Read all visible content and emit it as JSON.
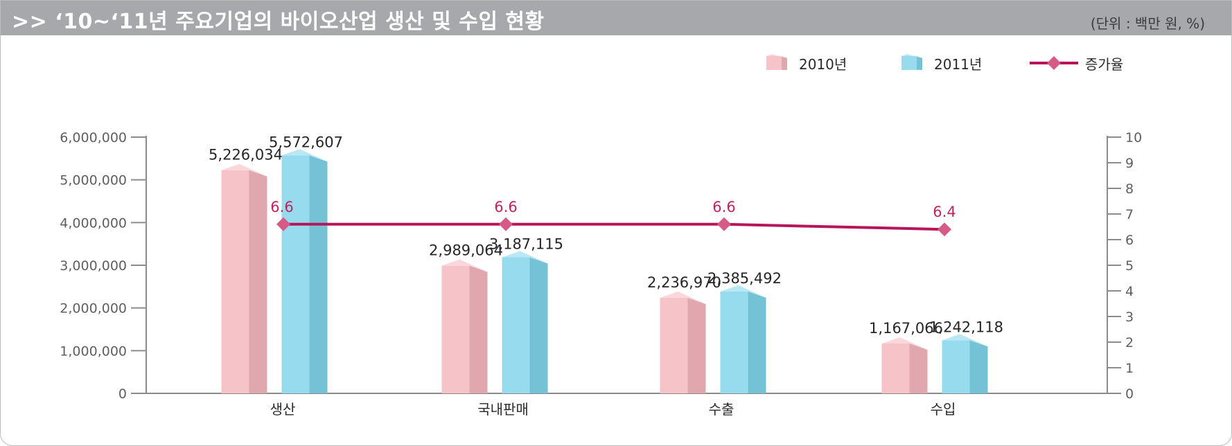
{
  "header": {
    "title": ">> ‘10~‘11년 주요기업의 바이오산업 생산 및 수입 현황",
    "unit": "(단위 : 백만 원, %)"
  },
  "chart_data": {
    "type": "bar",
    "categories": [
      "생산",
      "국내판매",
      "수출",
      "수입"
    ],
    "series": [
      {
        "name": "2010년",
        "values": [
          5226034,
          2989064,
          2236970,
          1167066
        ],
        "labels": [
          "5,226,034",
          "2,989,064",
          "2,236,970",
          "1,167,066"
        ],
        "color": "#f4b6bd"
      },
      {
        "name": "2011년",
        "values": [
          5572607,
          3187115,
          2385492,
          1242118
        ],
        "labels": [
          "5,572,607",
          "3,187,115",
          "2,385,492",
          "1,242,118"
        ],
        "color": "#7fd3ea"
      },
      {
        "name": "증가율",
        "type": "line",
        "axis": "right",
        "values": [
          6.6,
          6.6,
          6.6,
          6.4
        ],
        "labels": [
          "6.6",
          "6.6",
          "6.6",
          "6.4"
        ],
        "color": "#b7155a"
      }
    ],
    "left_axis": {
      "range": [
        0,
        6000000
      ],
      "ticks": [
        "0",
        "1,000,000",
        "2,000,000",
        "3,000,000",
        "4,000,000",
        "5,000,000",
        "6,000,000"
      ]
    },
    "right_axis": {
      "range": [
        0,
        10
      ],
      "ticks": [
        "0",
        "1",
        "2",
        "3",
        "4",
        "5",
        "6",
        "7",
        "8",
        "9",
        "10"
      ]
    },
    "legend_position": "top-right",
    "grid": false
  }
}
